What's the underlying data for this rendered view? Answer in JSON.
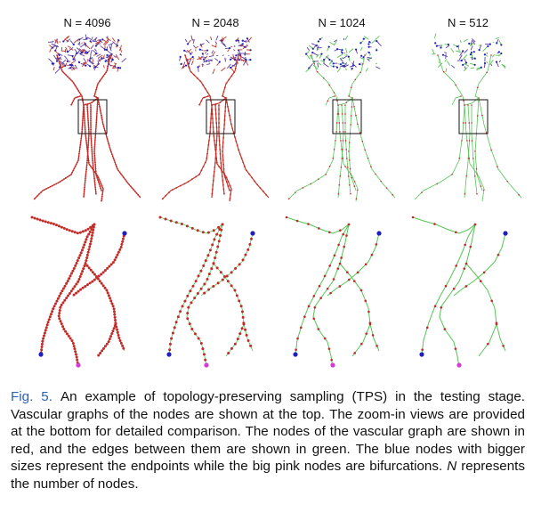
{
  "figure": {
    "panels": [
      {
        "title": "N = 4096",
        "density": 4096
      },
      {
        "title": "N = 2048",
        "density": 2048
      },
      {
        "title": "N = 1024",
        "density": 1024
      },
      {
        "title": "N = 512",
        "density": 512
      }
    ],
    "colors": {
      "node": "#c62828",
      "edge_dense": "#c0392b",
      "edge_sparse": "#55c455",
      "endpoint": "#1f1fbf",
      "bifurcation": "#d63bd6",
      "head_mix": "#5b3f9e"
    }
  },
  "caption": {
    "label": "Fig. 5.",
    "text1": "An example of topology-preserving sampling (TPS) in the testing stage. Vascular graphs of the nodes are shown at the top. The zoom-in views are provided at the bottom for detailed comparison. The nodes of the vascular graph are shown in red, and the edges between them are shown in green. The blue nodes with bigger sizes represent the endpoints while the big pink nodes are bifurcations. ",
    "n_symbol": "N",
    "text2": " represents the number of nodes."
  }
}
